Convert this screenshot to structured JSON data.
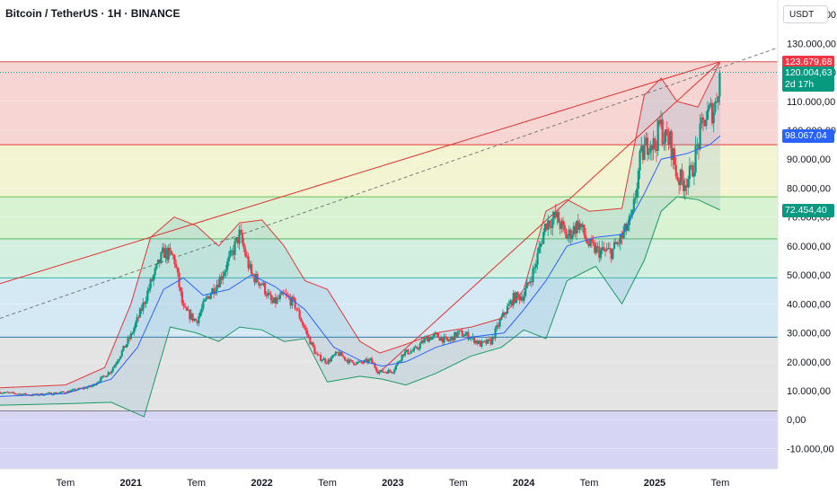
{
  "header": {
    "title": "Bitcoin / TetherUS · 1H · BINANCE",
    "currency": "USDT"
  },
  "colors": {
    "up": "#089981",
    "down": "#f23645",
    "basis": "#2962ff",
    "band_upper": "#e03a3a",
    "band_lower": "#1a9a62",
    "trend": "#e0302e"
  },
  "chart_data": {
    "type": "candlestick",
    "title": "Bitcoin / TetherUS · 1H · BINANCE",
    "y_axis": {
      "unit": "USDT",
      "ylim": [
        -17000,
        145000
      ],
      "ticks": [
        "140.000,00",
        "130.000,00",
        "120.000,00",
        "110.000,00",
        "100.000,00",
        "90.000,00",
        "80.000,00",
        "70.000,00",
        "60.000,00",
        "50.000,00",
        "40.000,00",
        "30.000,00",
        "20.000,00",
        "10.000,00",
        "0,00",
        "-10.000,00"
      ],
      "tick_values": [
        140000,
        130000,
        120000,
        110000,
        100000,
        90000,
        80000,
        70000,
        60000,
        50000,
        40000,
        30000,
        20000,
        10000,
        0,
        -10000
      ]
    },
    "x_axis": {
      "labels": [
        "Tem",
        "2021",
        "Tem",
        "2022",
        "Tem",
        "2023",
        "Tem",
        "2024",
        "Tem",
        "2025",
        "Tem"
      ],
      "major": [
        false,
        true,
        false,
        true,
        false,
        true,
        false,
        true,
        false,
        true,
        false
      ],
      "positions": [
        2020.5,
        2021.0,
        2021.5,
        2022.0,
        2022.5,
        2023.0,
        2023.5,
        2024.0,
        2024.5,
        2025.0,
        2025.5
      ],
      "xlim": [
        2020.0,
        2025.94
      ]
    },
    "fib_levels": [
      123680,
      95000,
      77000,
      62500,
      49000,
      28500,
      3000
    ],
    "fib_zone_colors": [
      "#f6d5d3",
      "#f3f5d2",
      "#d9f2d2",
      "#d2efdf",
      "#d5e9f4",
      "#e4e4e4",
      "#d7d5f4"
    ],
    "price_labels": [
      {
        "text": "123.679,68",
        "value": 123680,
        "color": "#f23645"
      },
      {
        "text": "120.004,63",
        "value": 120005,
        "color": "#089981",
        "extra": "2d 17h"
      },
      {
        "text": "98.067,04",
        "value": 98067,
        "color": "#2962ff"
      },
      {
        "text": "72.454,40",
        "value": 72454,
        "color": "#089981"
      }
    ],
    "current_price": 120005,
    "trend_lines": [
      {
        "style": "solid",
        "from": [
          2020.0,
          47000
        ],
        "to": [
          2025.5,
          123680
        ]
      },
      {
        "style": "dashed",
        "from": [
          2020.0,
          35000
        ],
        "to": [
          2025.94,
          128500
        ]
      },
      {
        "style": "solid",
        "from": [
          2022.89,
          16000
        ],
        "to": [
          2025.5,
          123680
        ]
      }
    ],
    "closes": [
      [
        2020.0,
        9500
      ],
      [
        2020.25,
        8500
      ],
      [
        2020.5,
        9500
      ],
      [
        2020.7,
        11500
      ],
      [
        2020.85,
        17000
      ],
      [
        2021.0,
        29000
      ],
      [
        2021.08,
        38000
      ],
      [
        2021.15,
        47000
      ],
      [
        2021.25,
        58000
      ],
      [
        2021.33,
        56000
      ],
      [
        2021.4,
        38000
      ],
      [
        2021.5,
        34000
      ],
      [
        2021.58,
        42000
      ],
      [
        2021.67,
        48000
      ],
      [
        2021.75,
        55000
      ],
      [
        2021.83,
        64000
      ],
      [
        2021.92,
        50000
      ],
      [
        2022.0,
        47000
      ],
      [
        2022.08,
        40000
      ],
      [
        2022.17,
        43000
      ],
      [
        2022.25,
        40000
      ],
      [
        2022.33,
        31000
      ],
      [
        2022.42,
        22000
      ],
      [
        2022.5,
        20000
      ],
      [
        2022.58,
        23000
      ],
      [
        2022.67,
        20000
      ],
      [
        2022.75,
        19500
      ],
      [
        2022.83,
        20500
      ],
      [
        2022.89,
        16500
      ],
      [
        2023.0,
        16800
      ],
      [
        2023.08,
        23000
      ],
      [
        2023.17,
        24000
      ],
      [
        2023.25,
        28000
      ],
      [
        2023.33,
        29000
      ],
      [
        2023.42,
        27000
      ],
      [
        2023.5,
        30000
      ],
      [
        2023.58,
        29000
      ],
      [
        2023.67,
        26000
      ],
      [
        2023.75,
        27000
      ],
      [
        2023.83,
        35000
      ],
      [
        2023.92,
        42000
      ],
      [
        2024.0,
        43000
      ],
      [
        2024.08,
        52000
      ],
      [
        2024.17,
        68000
      ],
      [
        2024.25,
        70000
      ],
      [
        2024.33,
        63000
      ],
      [
        2024.42,
        68000
      ],
      [
        2024.5,
        60000
      ],
      [
        2024.58,
        58000
      ],
      [
        2024.67,
        58000
      ],
      [
        2024.75,
        63000
      ],
      [
        2024.83,
        70000
      ],
      [
        2024.89,
        90000
      ],
      [
        2024.96,
        97000
      ],
      [
        2025.0,
        94000
      ],
      [
        2025.04,
        102000
      ],
      [
        2025.08,
        97000
      ],
      [
        2025.12,
        96000
      ],
      [
        2025.17,
        84000
      ],
      [
        2025.22,
        82000
      ],
      [
        2025.28,
        85000
      ],
      [
        2025.33,
        95000
      ],
      [
        2025.38,
        104000
      ],
      [
        2025.42,
        106000
      ],
      [
        2025.46,
        108000
      ],
      [
        2025.5,
        120005
      ]
    ],
    "indicator": {
      "name": "Bollinger Bands",
      "basis": [
        [
          2020.0,
          8000
        ],
        [
          2020.5,
          9000
        ],
        [
          2020.85,
          14000
        ],
        [
          2021.05,
          25000
        ],
        [
          2021.25,
          45000
        ],
        [
          2021.4,
          49000
        ],
        [
          2021.55,
          43000
        ],
        [
          2021.75,
          45000
        ],
        [
          2021.92,
          50000
        ],
        [
          2022.1,
          46000
        ],
        [
          2022.33,
          38000
        ],
        [
          2022.55,
          25000
        ],
        [
          2022.75,
          20500
        ],
        [
          2022.92,
          18500
        ],
        [
          2023.1,
          20000
        ],
        [
          2023.33,
          25000
        ],
        [
          2023.6,
          28500
        ],
        [
          2023.85,
          30000
        ],
        [
          2024.0,
          38000
        ],
        [
          2024.17,
          48000
        ],
        [
          2024.33,
          60000
        ],
        [
          2024.55,
          63000
        ],
        [
          2024.75,
          64000
        ],
        [
          2024.92,
          78000
        ],
        [
          2025.05,
          90000
        ],
        [
          2025.25,
          92000
        ],
        [
          2025.42,
          95000
        ],
        [
          2025.5,
          98067
        ]
      ],
      "upper": [
        [
          2020.0,
          11000
        ],
        [
          2020.5,
          12000
        ],
        [
          2020.8,
          18000
        ],
        [
          2021.0,
          40000
        ],
        [
          2021.15,
          63000
        ],
        [
          2021.33,
          70000
        ],
        [
          2021.5,
          67000
        ],
        [
          2021.67,
          60000
        ],
        [
          2021.83,
          68000
        ],
        [
          2022.0,
          69000
        ],
        [
          2022.17,
          60000
        ],
        [
          2022.33,
          48000
        ],
        [
          2022.5,
          45000
        ],
        [
          2022.75,
          27000
        ],
        [
          2022.9,
          23000
        ],
        [
          2023.1,
          26000
        ],
        [
          2023.33,
          30000
        ],
        [
          2023.6,
          32000
        ],
        [
          2023.83,
          35000
        ],
        [
          2024.0,
          45000
        ],
        [
          2024.17,
          72000
        ],
        [
          2024.33,
          76000
        ],
        [
          2024.5,
          72000
        ],
        [
          2024.75,
          73000
        ],
        [
          2024.92,
          112000
        ],
        [
          2025.05,
          118000
        ],
        [
          2025.17,
          110000
        ],
        [
          2025.33,
          108000
        ],
        [
          2025.5,
          123680
        ]
      ],
      "lower": [
        [
          2020.0,
          5000
        ],
        [
          2020.5,
          5500
        ],
        [
          2020.85,
          6000
        ],
        [
          2021.0,
          3000
        ],
        [
          2021.1,
          1000
        ],
        [
          2021.3,
          32000
        ],
        [
          2021.5,
          30000
        ],
        [
          2021.67,
          27000
        ],
        [
          2021.83,
          32000
        ],
        [
          2022.0,
          31000
        ],
        [
          2022.17,
          27000
        ],
        [
          2022.33,
          28000
        ],
        [
          2022.5,
          13000
        ],
        [
          2022.75,
          15000
        ],
        [
          2022.92,
          14000
        ],
        [
          2023.1,
          12000
        ],
        [
          2023.33,
          16000
        ],
        [
          2023.6,
          22000
        ],
        [
          2023.83,
          25000
        ],
        [
          2024.0,
          31000
        ],
        [
          2024.17,
          28000
        ],
        [
          2024.33,
          48000
        ],
        [
          2024.55,
          53000
        ],
        [
          2024.75,
          40000
        ],
        [
          2024.92,
          55000
        ],
        [
          2025.05,
          72000
        ],
        [
          2025.17,
          77000
        ],
        [
          2025.33,
          76000
        ],
        [
          2025.5,
          72454
        ]
      ]
    }
  }
}
